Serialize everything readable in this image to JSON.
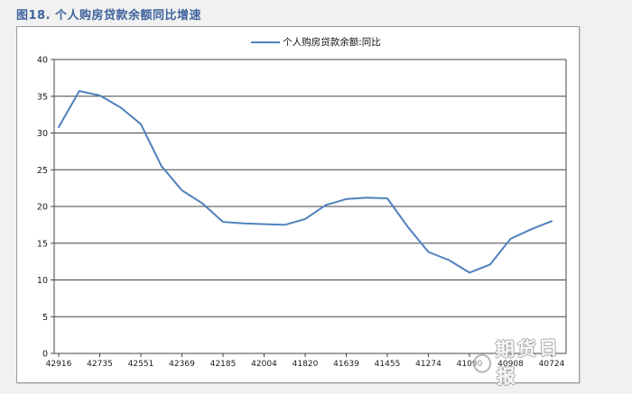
{
  "title": "图18. 个人购房贷款余额同比增速",
  "legend": {
    "label": "个人购房贷款余额:同比"
  },
  "watermark": {
    "text": "期货日报",
    "logo": "circle-logo"
  },
  "colors": {
    "series_line": "#4F81BD",
    "title_text": "#3f639b",
    "gridline": "#444444",
    "axis": "#444444",
    "tick_label": "#1a1a1a",
    "page_background": "#f1f1f1",
    "plot_background": "#ffffff"
  },
  "chart_data": {
    "type": "line",
    "title": "图18. 个人购房贷款余额同比增速",
    "legend_entries": [
      "个人购房贷款余额:同比"
    ],
    "legend_position": "top-center",
    "grid": true,
    "ylim": [
      0,
      40
    ],
    "ytick_step": 5,
    "ytick_labels": [
      "0",
      "5",
      "10",
      "15",
      "20",
      "25",
      "30",
      "35",
      "40"
    ],
    "x_axis_note": "Excel date serials, newest at left, semiannual labels with quarterly points",
    "x_labels": [
      "42916",
      "42735",
      "42551",
      "42369",
      "42185",
      "42004",
      "41820",
      "41639",
      "41455",
      "41274",
      "41090",
      "40908",
      "40724"
    ],
    "points_per_label_interval": 2,
    "series": [
      {
        "name": "个人购房贷款余额:同比",
        "color": "#4F81BD",
        "values": [
          30.8,
          35.7,
          35.1,
          33.5,
          31.2,
          25.5,
          22.2,
          20.4,
          17.9,
          17.7,
          17.6,
          17.5,
          18.3,
          20.2,
          21.0,
          21.2,
          21.1,
          17.2,
          13.8,
          12.7,
          11.0,
          12.1,
          15.6,
          16.9,
          18.0
        ]
      }
    ]
  }
}
